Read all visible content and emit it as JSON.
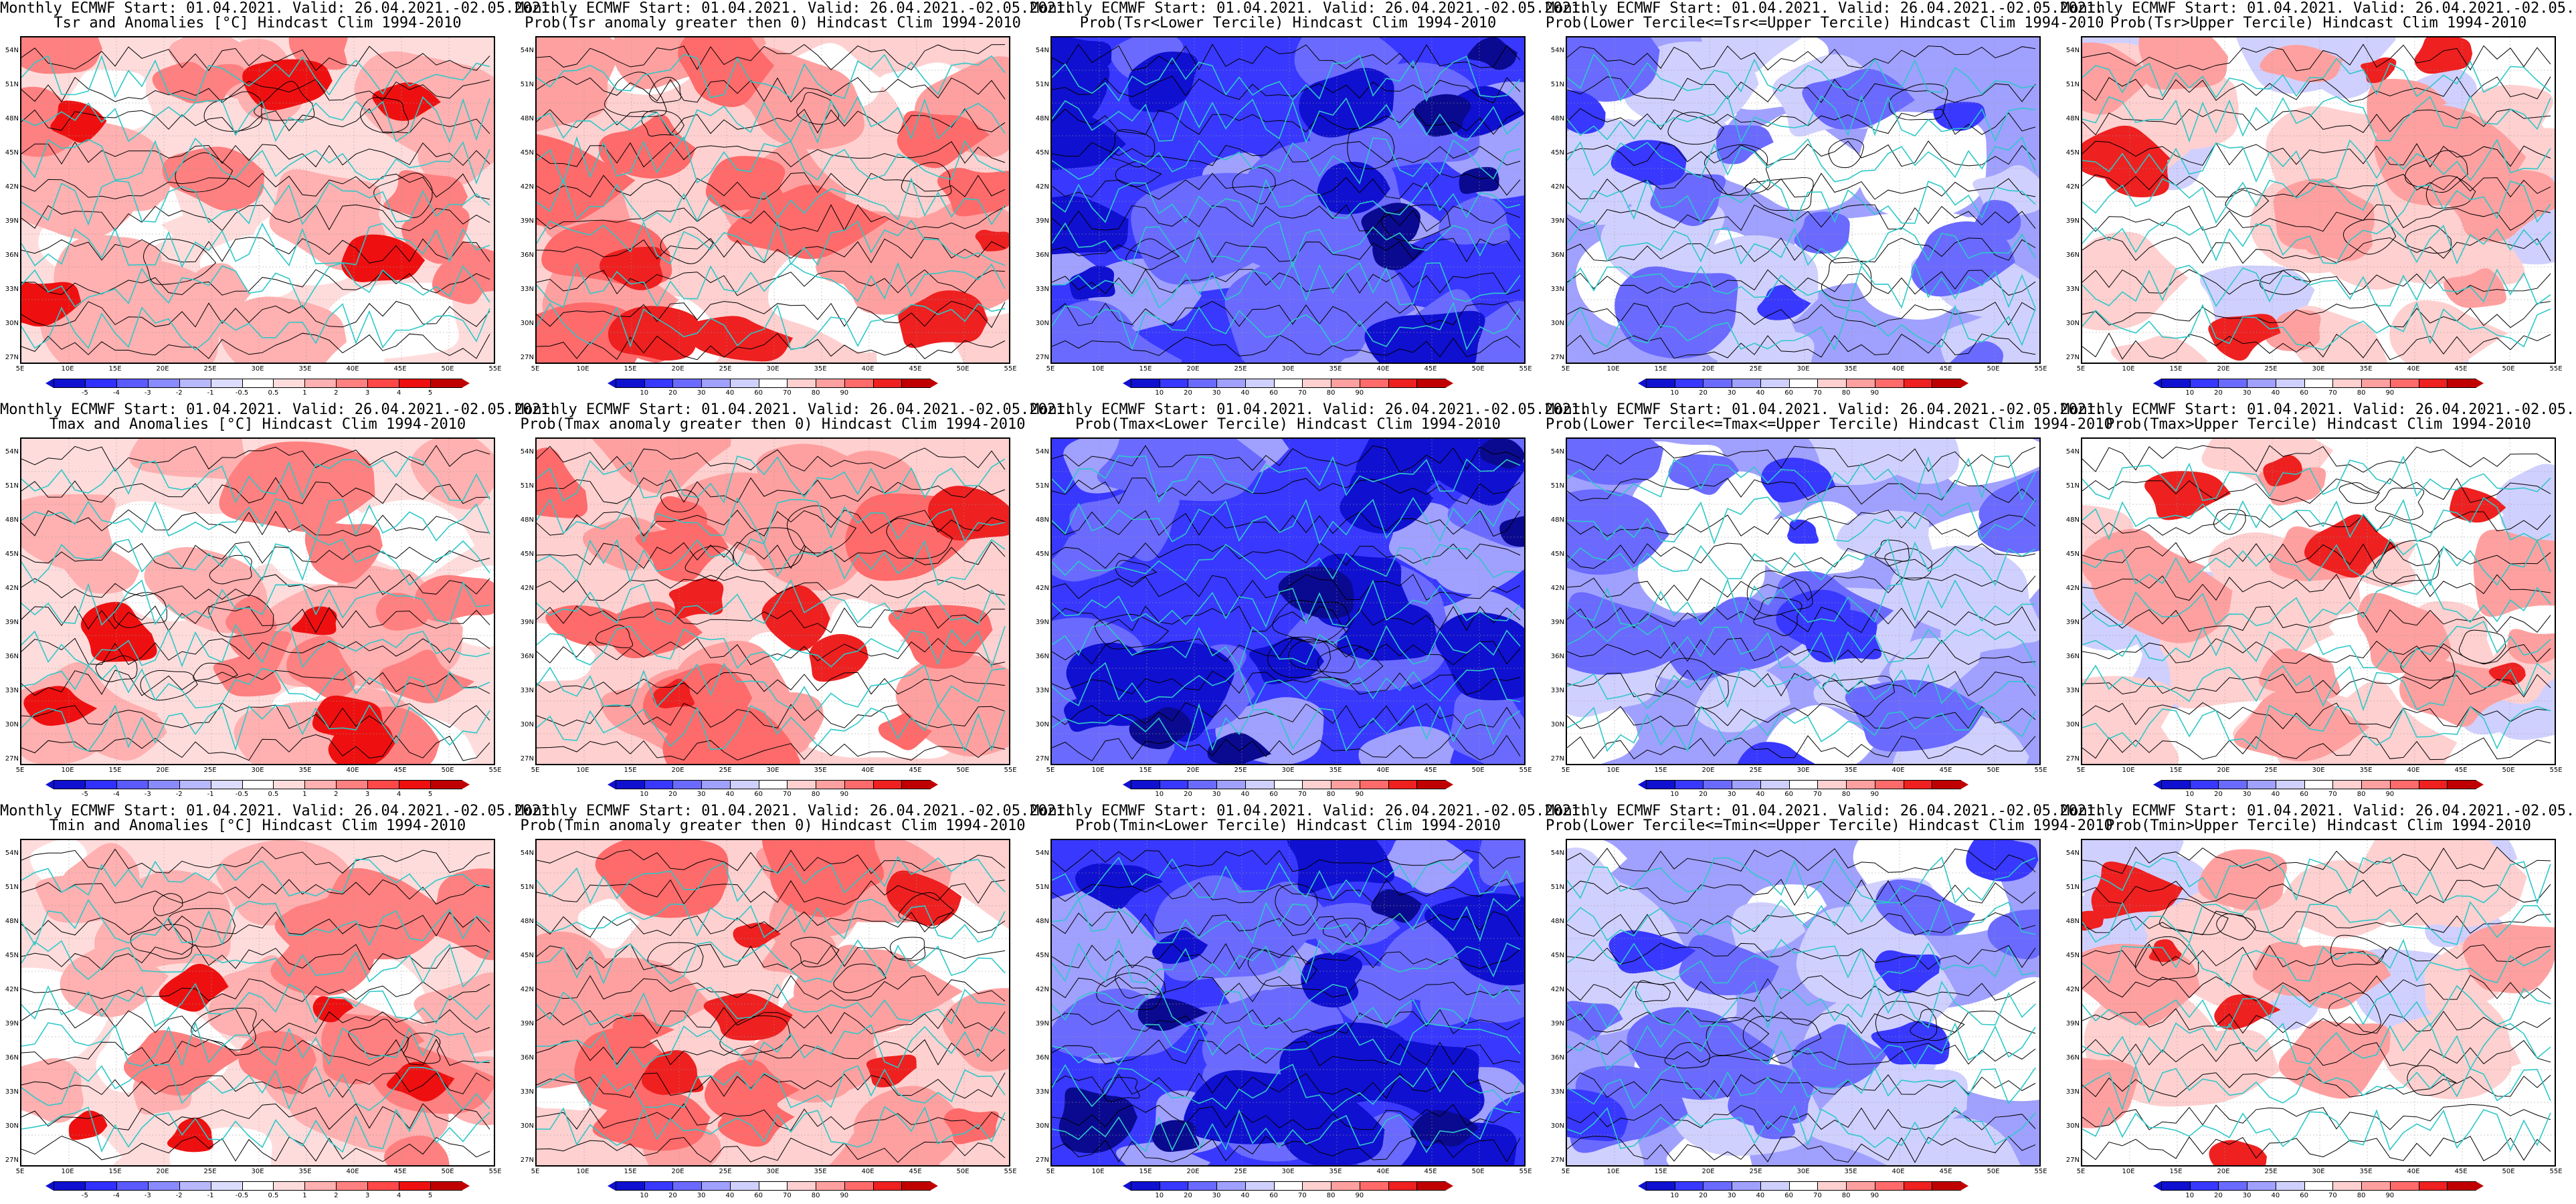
{
  "title_line1": "Monthly ECMWF Start: 01.04.2021. Valid: 26.04.2021.-02.05.2021.",
  "lat_labels": [
    "54N",
    "51N",
    "48N",
    "45N",
    "42N",
    "39N",
    "36N",
    "33N",
    "30N",
    "27N"
  ],
  "lon_labels": [
    "5E",
    "10E",
    "15E",
    "20E",
    "25E",
    "30E",
    "35E",
    "40E",
    "45E",
    "50E",
    "55E"
  ],
  "anom_ticks": [
    "-5",
    "-4",
    "-3",
    "-2",
    "-1",
    "-0.5",
    "0.5",
    "1",
    "2",
    "3",
    "4",
    "5"
  ],
  "prob_ticks": [
    "10",
    "20",
    "30",
    "40",
    "60",
    "70",
    "80",
    "90"
  ],
  "colors": {
    "anom_scale": [
      "#1010d0",
      "#3030ff",
      "#5a5aff",
      "#8a8aff",
      "#b8b8ff",
      "#dcdcff",
      "#ffffff",
      "#ffdcdc",
      "#ffb0b0",
      "#ff8080",
      "#ff4848",
      "#ee1010",
      "#c00000"
    ],
    "prob_scale": [
      "#1010d0",
      "#3838ff",
      "#6a6aff",
      "#a0a0ff",
      "#d0d0ff",
      "#ffffff",
      "#ffd0d0",
      "#ffa0a0",
      "#ff6a6a",
      "#ee2020",
      "#c00000"
    ],
    "coast": "#2ec8c8",
    "contour": "#000000"
  },
  "panels": [
    {
      "row": 0,
      "col": 0,
      "line2": "Tsr and Anomalies [°C] Hindcast Clim 1994-2010",
      "kind": "anom",
      "tone": "red",
      "level": 0.55
    },
    {
      "row": 0,
      "col": 1,
      "line2": "Prob(Tsr anomaly greater then 0) Hindcast Clim 1994-2010",
      "kind": "prob",
      "tone": "red",
      "level": 0.75
    },
    {
      "row": 0,
      "col": 2,
      "line2": "Prob(Tsr<Lower Tercile) Hindcast Clim 1994-2010",
      "kind": "prob",
      "tone": "blue",
      "level": 0.85
    },
    {
      "row": 0,
      "col": 3,
      "line2": "Prob(Lower Tercile<=Tsr<=Upper Tercile) Hindcast Clim 1994-2010",
      "kind": "prob",
      "tone": "blue",
      "level": 0.45
    },
    {
      "row": 0,
      "col": 4,
      "line2": "Prob(Tsr>Upper Tercile) Hindcast Clim 1994-2010",
      "kind": "prob",
      "tone": "neutral",
      "level": 0.2
    },
    {
      "row": 1,
      "col": 0,
      "line2": "Tmax and Anomalies [°C] Hindcast Clim 1994-2010",
      "kind": "anom",
      "tone": "red",
      "level": 0.5
    },
    {
      "row": 1,
      "col": 1,
      "line2": "Prob(Tmax anomaly greater then 0) Hindcast Clim 1994-2010",
      "kind": "prob",
      "tone": "red",
      "level": 0.6
    },
    {
      "row": 1,
      "col": 2,
      "line2": "Prob(Tmax<Lower Tercile) Hindcast Clim 1994-2010",
      "kind": "prob",
      "tone": "blue",
      "level": 0.75
    },
    {
      "row": 1,
      "col": 3,
      "line2": "Prob(Lower Tercile<=Tmax<=Upper Tercile) Hindcast Clim 1994-2010",
      "kind": "prob",
      "tone": "blue",
      "level": 0.5
    },
    {
      "row": 1,
      "col": 4,
      "line2": "Prob(Tmax>Upper Tercile) Hindcast Clim 1994-2010",
      "kind": "prob",
      "tone": "neutral",
      "level": 0.15
    },
    {
      "row": 2,
      "col": 0,
      "line2": "Tmin and Anomalies [°C] Hindcast Clim 1994-2010",
      "kind": "anom",
      "tone": "red",
      "level": 0.6
    },
    {
      "row": 2,
      "col": 1,
      "line2": "Prob(Tmin anomaly greater then 0) Hindcast Clim 1994-2010",
      "kind": "prob",
      "tone": "red",
      "level": 0.8
    },
    {
      "row": 2,
      "col": 2,
      "line2": "Prob(Tmin<Lower Tercile) Hindcast Clim 1994-2010",
      "kind": "prob",
      "tone": "blue",
      "level": 0.9
    },
    {
      "row": 2,
      "col": 3,
      "line2": "Prob(Lower Tercile<=Tmin<=Upper Tercile) Hindcast Clim 1994-2010",
      "kind": "prob",
      "tone": "blue",
      "level": 0.5
    },
    {
      "row": 2,
      "col": 4,
      "line2": "Prob(Tmin>Upper Tercile) Hindcast Clim 1994-2010",
      "kind": "prob",
      "tone": "neutral",
      "level": 0.25
    }
  ]
}
